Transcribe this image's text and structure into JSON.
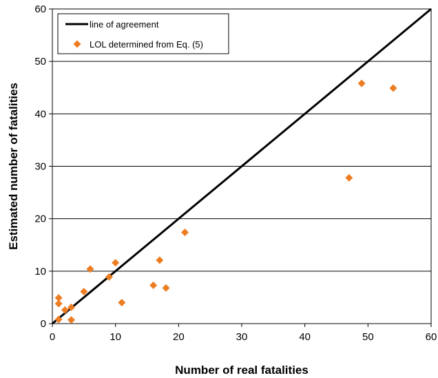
{
  "chart_data": {
    "type": "scatter",
    "xlabel": "Number of real fatalities",
    "ylabel": "Estimated number of fatalities",
    "xlim": [
      0,
      60
    ],
    "ylim": [
      0,
      60
    ],
    "xticks": [
      0,
      10,
      20,
      30,
      40,
      50,
      60
    ],
    "yticks": [
      0,
      10,
      20,
      30,
      40,
      50,
      60
    ],
    "grid": "horizontal",
    "legend_position": "top-left",
    "series": [
      {
        "name": "line of agreement",
        "kind": "line",
        "color": "#000000",
        "x": [
          0,
          60
        ],
        "y": [
          0,
          60
        ]
      },
      {
        "name": "LOL determined from Eq. (5)",
        "kind": "scatter",
        "marker": "diamond",
        "color": "#ED7D22",
        "x": [
          1,
          1,
          1,
          2,
          3,
          3,
          5,
          6,
          9,
          10,
          11,
          16,
          17,
          18,
          21,
          47,
          49,
          54
        ],
        "y": [
          0.8,
          4.9,
          3.8,
          2.6,
          3.1,
          0.7,
          6.1,
          10.4,
          8.9,
          11.6,
          4.0,
          7.3,
          12.1,
          6.8,
          17.4,
          27.8,
          45.8,
          44.9
        ]
      }
    ]
  }
}
